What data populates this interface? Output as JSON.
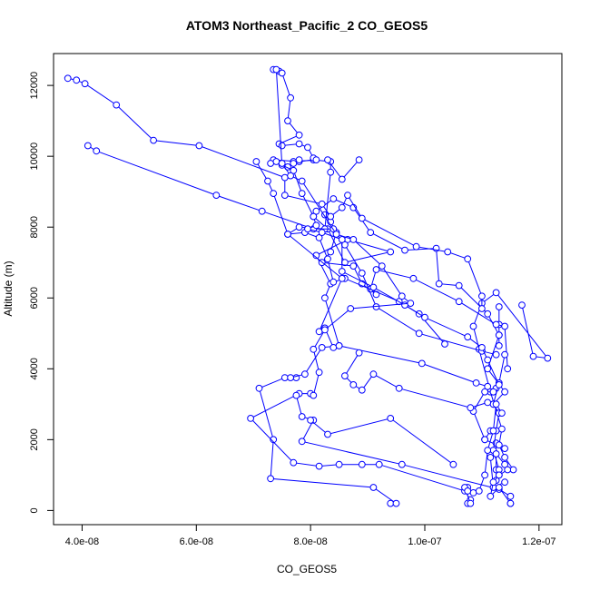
{
  "chart_data": {
    "type": "line",
    "title": "ATOM3 Northeast_Pacific_2 CO_GEOS5",
    "xlabel": "CO_GEOS5",
    "ylabel": "Altitude (m)",
    "xlim": [
      3.5e-08,
      1.24e-07
    ],
    "ylim": [
      -400,
      12900
    ],
    "x_ticks": [
      {
        "value": 4e-08,
        "label": "4.0e-08"
      },
      {
        "value": 6e-08,
        "label": "6.0e-08"
      },
      {
        "value": 8e-08,
        "label": "8.0e-08"
      },
      {
        "value": 1e-07,
        "label": "1.0e-07"
      },
      {
        "value": 1.2e-07,
        "label": "1.2e-07"
      }
    ],
    "y_ticks": [
      {
        "value": 0,
        "label": "0"
      },
      {
        "value": 2000,
        "label": "2000"
      },
      {
        "value": 4000,
        "label": "4000"
      },
      {
        "value": 6000,
        "label": "6000"
      },
      {
        "value": 8000,
        "label": "8000"
      },
      {
        "value": 10000,
        "label": "10000"
      },
      {
        "value": 12000,
        "label": "12000"
      }
    ],
    "grid": false,
    "series_color": "#0000ff",
    "series": [
      {
        "points": [
          [
            9.4e-08,
            200
          ],
          [
            9.5e-08,
            200
          ],
          [
            9.1e-08,
            650
          ],
          [
            7.3e-08,
            900
          ],
          [
            7.35e-08,
            2000
          ],
          [
            7.1e-08,
            3450
          ],
          [
            7.55e-08,
            3750
          ],
          [
            7.75e-08,
            3750
          ]
        ]
      },
      {
        "points": [
          [
            1.075e-07,
            200
          ],
          [
            1.08e-07,
            300
          ],
          [
            1.07e-07,
            550
          ],
          [
            9.2e-08,
            1300
          ],
          [
            8.9e-08,
            1300
          ],
          [
            8.5e-08,
            1300
          ],
          [
            8.15e-08,
            1250
          ],
          [
            7.7e-08,
            1350
          ],
          [
            6.95e-08,
            2600
          ],
          [
            7.8e-08,
            3300
          ],
          [
            8e-08,
            3300
          ]
        ]
      },
      {
        "points": [
          [
            1.15e-07,
            200
          ],
          [
            1.15e-07,
            400
          ],
          [
            1.13e-07,
            600
          ],
          [
            9.6e-08,
            1300
          ],
          [
            7.85e-08,
            1950
          ],
          [
            8.05e-08,
            2550
          ],
          [
            7.85e-08,
            2650
          ],
          [
            7.75e-08,
            3250
          ]
        ]
      },
      {
        "points": [
          [
            1.125e-07,
            1150
          ],
          [
            1.125e-07,
            1900
          ],
          [
            1.14e-07,
            1750
          ],
          [
            1.105e-07,
            2000
          ],
          [
            1.115e-07,
            2250
          ]
        ]
      },
      {
        "points": [
          [
            1.155e-07,
            1150
          ],
          [
            1.14e-07,
            1500
          ],
          [
            1.13e-07,
            1850
          ],
          [
            1.135e-07,
            2300
          ],
          [
            1.115e-07,
            3350
          ],
          [
            1.095e-07,
            4550
          ],
          [
            1.085e-07,
            5200
          ],
          [
            1.1e-07,
            5850
          ],
          [
            1.125e-07,
            6150
          ],
          [
            1.215e-07,
            4300
          ],
          [
            1.19e-07,
            4350
          ],
          [
            1.17e-07,
            5800
          ]
        ]
      },
      {
        "points": [
          [
            1.13e-07,
            4650
          ],
          [
            1.13e-07,
            5250
          ],
          [
            1.13e-07,
            5750
          ],
          [
            1.13e-07,
            4950
          ],
          [
            1.11e-07,
            4000
          ],
          [
            1.14e-07,
            3350
          ],
          [
            1.12e-07,
            3000
          ]
        ]
      },
      {
        "points": [
          [
            1.05e-07,
            1300
          ],
          [
            9.4e-08,
            2600
          ],
          [
            8.3e-08,
            2150
          ],
          [
            8e-08,
            2550
          ]
        ]
      },
      {
        "points": [
          [
            1.11e-07,
            3500
          ],
          [
            1.09e-07,
            3600
          ],
          [
            9.95e-08,
            4150
          ],
          [
            8.5e-08,
            4650
          ],
          [
            8.25e-08,
            6000
          ],
          [
            8.35e-08,
            6400
          ],
          [
            8.1e-08,
            7200
          ],
          [
            8.65e-08,
            7650
          ],
          [
            9.4e-08,
            7300
          ],
          [
            8.6e-08,
            7000
          ],
          [
            8.3e-08,
            7950
          ],
          [
            8.05e-08,
            8300
          ],
          [
            8.1e-08,
            8450
          ],
          [
            8.4e-08,
            8800
          ],
          [
            8.75e-08,
            8550
          ],
          [
            9.05e-08,
            7850
          ],
          [
            9.65e-08,
            7350
          ],
          [
            1.02e-07,
            7400
          ],
          [
            1.025e-07,
            6400
          ],
          [
            1.06e-07,
            6350
          ],
          [
            1.11e-07,
            5550
          ],
          [
            1.13e-07,
            4950
          ]
        ]
      },
      {
        "points": [
          [
            1.105e-07,
            2000
          ],
          [
            1.085e-07,
            2800
          ],
          [
            1.105e-07,
            3350
          ],
          [
            1.12e-07,
            3350
          ],
          [
            1.125e-07,
            3450
          ],
          [
            1.12e-07,
            3350
          ]
        ]
      },
      {
        "points": [
          [
            1.145e-07,
            4000
          ],
          [
            1.14e-07,
            5200
          ],
          [
            1.125e-07,
            5250
          ],
          [
            1.06e-07,
            5900
          ],
          [
            9.8e-08,
            6550
          ],
          [
            9.15e-08,
            6800
          ],
          [
            9.05e-08,
            6250
          ],
          [
            9.15e-08,
            6100
          ],
          [
            8.9e-08,
            6400
          ],
          [
            8.75e-08,
            6900
          ],
          [
            8.2e-08,
            7000
          ],
          [
            8.35e-08,
            7300
          ],
          [
            8.45e-08,
            7850
          ],
          [
            8.35e-08,
            8150
          ],
          [
            8.25e-08,
            8350
          ]
        ]
      },
      {
        "points": [
          [
            1.035e-07,
            4700
          ],
          [
            9.9e-08,
            5550
          ],
          [
            9.55e-08,
            5900
          ],
          [
            8.6e-08,
            6550
          ],
          [
            8.4e-08,
            6450
          ],
          [
            8.3e-08,
            7100
          ],
          [
            8.15e-08,
            7700
          ],
          [
            7.9e-08,
            7850
          ],
          [
            7.6e-08,
            7800
          ],
          [
            7.8e-08,
            8000
          ],
          [
            8.25e-08,
            7950
          ],
          [
            8.35e-08,
            9550
          ],
          [
            8.35e-08,
            9850
          ],
          [
            8.05e-08,
            9900
          ],
          [
            7.8e-08,
            9850
          ],
          [
            7.35e-08,
            9900
          ]
        ]
      },
      {
        "points": [
          [
            1.14e-07,
            4400
          ],
          [
            1.13e-07,
            3600
          ],
          [
            1.12e-07,
            3000
          ],
          [
            1.13e-07,
            2750
          ],
          [
            1.125e-07,
            2250
          ],
          [
            1.12e-07,
            1700
          ],
          [
            1.13e-07,
            1150
          ],
          [
            1.125e-07,
            850
          ]
        ]
      },
      {
        "points": [
          [
            1.14e-07,
            800
          ],
          [
            1.12e-07,
            650
          ],
          [
            1.115e-07,
            1500
          ],
          [
            1.125e-07,
            1600
          ],
          [
            1.14e-07,
            1300
          ],
          [
            1.145e-07,
            1150
          ],
          [
            1.13e-07,
            1000
          ]
        ]
      },
      {
        "points": [
          [
            3.75e-08,
            12200
          ],
          [
            3.9e-08,
            12150
          ],
          [
            4.05e-08,
            12050
          ],
          [
            4.6e-08,
            11450
          ],
          [
            5.25e-08,
            10450
          ],
          [
            6.05e-08,
            10300
          ],
          [
            7.55e-08,
            9400
          ],
          [
            7.55e-08,
            8900
          ],
          [
            8.2e-08,
            8650
          ],
          [
            8.35e-08,
            8300
          ],
          [
            8.55e-08,
            8550
          ],
          [
            8.65e-08,
            8900
          ],
          [
            8.9e-08,
            8250
          ],
          [
            9.85e-08,
            7450
          ],
          [
            1.04e-07,
            7300
          ],
          [
            1.075e-07,
            7100
          ],
          [
            1.1e-07,
            6050
          ],
          [
            1.1e-07,
            5700
          ]
        ]
      },
      {
        "points": [
          [
            4.1e-08,
            10300
          ],
          [
            4.25e-08,
            10150
          ],
          [
            6.35e-08,
            8900
          ],
          [
            7.15e-08,
            8450
          ],
          [
            8.05e-08,
            7950
          ],
          [
            8.4e-08,
            7950
          ],
          [
            8.6e-08,
            7500
          ],
          [
            8.9e-08,
            6700
          ],
          [
            9.15e-08,
            5750
          ],
          [
            9.9e-08,
            5000
          ],
          [
            1.1e-07,
            4500
          ],
          [
            1.125e-07,
            4400
          ]
        ]
      },
      {
        "points": [
          [
            7.35e-08,
            12450
          ],
          [
            7.45e-08,
            12400
          ],
          [
            7.5e-08,
            12350
          ],
          [
            7.65e-08,
            11650
          ],
          [
            7.6e-08,
            11000
          ],
          [
            7.8e-08,
            10600
          ],
          [
            7.45e-08,
            10350
          ],
          [
            7.5e-08,
            10300
          ],
          [
            7.8e-08,
            10350
          ],
          [
            7.95e-08,
            10250
          ],
          [
            8.05e-08,
            9950
          ],
          [
            8.1e-08,
            9900
          ],
          [
            7.7e-08,
            9850
          ],
          [
            7.8e-08,
            9900
          ],
          [
            7.6e-08,
            9700
          ],
          [
            7.7e-08,
            9800
          ]
        ]
      },
      {
        "points": [
          [
            7.4e-08,
            12450
          ],
          [
            7.5e-08,
            9750
          ],
          [
            7.7e-08,
            9600
          ],
          [
            7.85e-08,
            8950
          ],
          [
            8.05e-08,
            8300
          ],
          [
            8.1e-08,
            8050
          ],
          [
            7.95e-08,
            7950
          ],
          [
            8.2e-08,
            7850
          ],
          [
            8.55e-08,
            7650
          ],
          [
            8.55e-08,
            6750
          ],
          [
            9.1e-08,
            6300
          ],
          [
            9.65e-08,
            5800
          ],
          [
            1e-07,
            5450
          ],
          [
            1.075e-07,
            4900
          ],
          [
            1.1e-07,
            4600
          ],
          [
            1.11e-07,
            4250
          ],
          [
            1.13e-07,
            3550
          ]
        ]
      },
      {
        "points": [
          [
            7.05e-08,
            9850
          ],
          [
            7.25e-08,
            9300
          ],
          [
            7.35e-08,
            8950
          ],
          [
            7.6e-08,
            7800
          ],
          [
            8.55e-08,
            6550
          ],
          [
            8.15e-08,
            5050
          ],
          [
            8.25e-08,
            5150
          ],
          [
            8.4e-08,
            4600
          ],
          [
            8.5e-08,
            4650
          ],
          [
            8.2e-08,
            4600
          ],
          [
            7.9e-08,
            3850
          ],
          [
            7.65e-08,
            3750
          ]
        ]
      },
      {
        "points": [
          [
            7.3e-08,
            9800
          ],
          [
            7.4e-08,
            9850
          ],
          [
            7.5e-08,
            9800
          ],
          [
            7.65e-08,
            9450
          ],
          [
            7.85e-08,
            9300
          ],
          [
            8.45e-08,
            7800
          ],
          [
            8.75e-08,
            7650
          ],
          [
            9.25e-08,
            6900
          ],
          [
            9.6e-08,
            6050
          ],
          [
            9.75e-08,
            5850
          ],
          [
            8.7e-08,
            5700
          ],
          [
            8.25e-08,
            5100
          ],
          [
            8.05e-08,
            4550
          ],
          [
            8.15e-08,
            3900
          ],
          [
            8.05e-08,
            3250
          ]
        ]
      },
      {
        "points": [
          [
            8.85e-08,
            4450
          ],
          [
            8.6e-08,
            3800
          ],
          [
            8.75e-08,
            3550
          ],
          [
            8.9e-08,
            3400
          ],
          [
            9.1e-08,
            3850
          ],
          [
            9.55e-08,
            3450
          ],
          [
            1.08e-07,
            2900
          ],
          [
            1.11e-07,
            3050
          ]
        ]
      },
      {
        "points": [
          [
            1.075e-07,
            650
          ],
          [
            1.085e-07,
            500
          ],
          [
            1.095e-07,
            550
          ],
          [
            1.105e-07,
            1000
          ],
          [
            1.11e-07,
            1700
          ],
          [
            1.12e-07,
            2250
          ],
          [
            1.125e-07,
            3000
          ],
          [
            1.135e-07,
            2750
          ]
        ]
      },
      {
        "points": [
          [
            1.08e-07,
            200
          ],
          [
            1.07e-07,
            650
          ],
          [
            1.075e-07,
            550
          ]
        ]
      },
      {
        "points": [
          [
            1.15e-07,
            200
          ],
          [
            1.13e-07,
            650
          ],
          [
            1.115e-07,
            400
          ],
          [
            1.12e-07,
            800
          ],
          [
            1.13e-07,
            1000
          ]
        ]
      },
      {
        "points": [
          [
            8.3e-08,
            9900
          ],
          [
            8.55e-08,
            9350
          ],
          [
            8.85e-08,
            9900
          ]
        ]
      }
    ]
  }
}
